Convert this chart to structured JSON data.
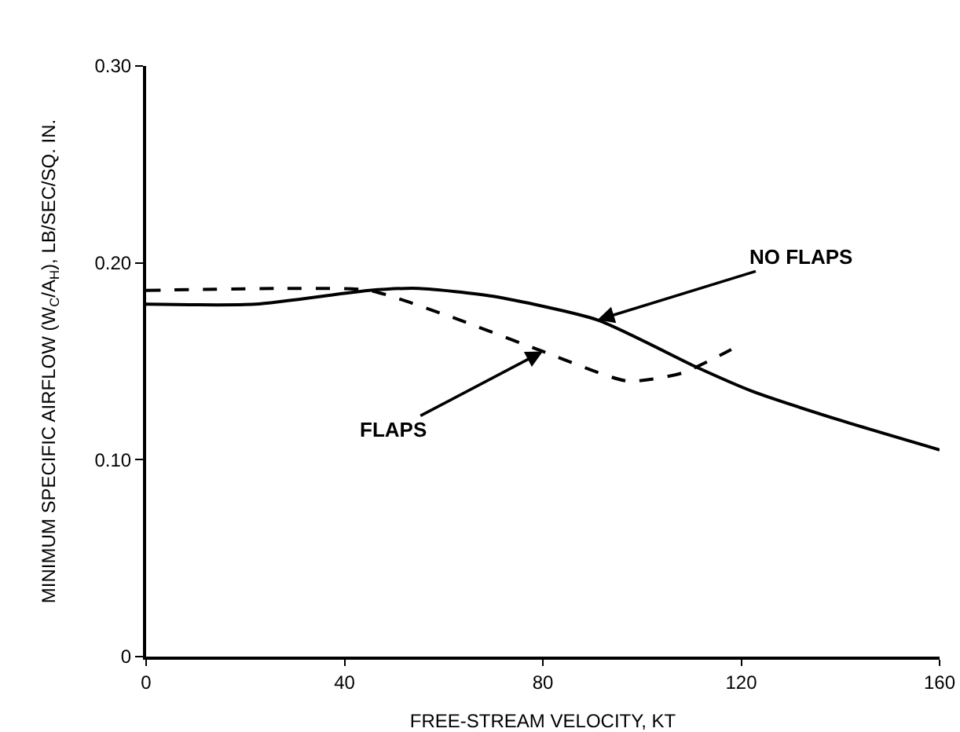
{
  "chart_data": {
    "type": "line",
    "xlabel": "FREE-STREAM VELOCITY, KT",
    "ylabel": "MINIMUM SPECIFIC AIRFLOW (W$_{C}$/A$_{H}$), LB/SEC/SQ. IN.",
    "xlim": [
      0,
      160
    ],
    "xticks": [
      0,
      40,
      80,
      120,
      160
    ],
    "ylim": [
      0,
      0.3
    ],
    "yticks": [
      {
        "value": 0,
        "label": "0"
      },
      {
        "value": 0.1,
        "label": "0.10"
      },
      {
        "value": 0.2,
        "label": "0.20"
      },
      {
        "value": 0.3,
        "label": "0.30"
      }
    ],
    "grid": false,
    "legend": false,
    "marker": "none",
    "series": [
      {
        "name": "NO FLAPS",
        "color": "#000000",
        "line_style": "solid",
        "x": [
          0,
          22,
          45,
          55,
          70,
          91,
          111,
          122,
          140,
          160
        ],
        "values": [
          0.179,
          0.179,
          0.186,
          0.187,
          0.183,
          0.171,
          0.147,
          0.135,
          0.12,
          0.105
        ]
      },
      {
        "name": "FLAPS",
        "color": "#000000",
        "line_style": "dashed",
        "x": [
          0,
          28,
          45,
          61,
          80,
          97,
          108,
          118
        ],
        "values": [
          0.186,
          0.187,
          0.186,
          0.173,
          0.155,
          0.14,
          0.144,
          0.156
        ]
      }
    ]
  }
}
